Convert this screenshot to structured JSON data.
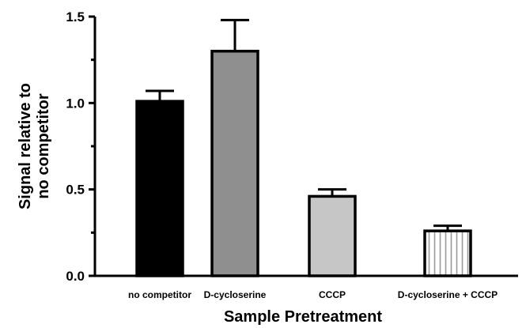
{
  "chart_data": {
    "type": "bar",
    "title": "",
    "categories": [
      "no competitor",
      "D-cycloserine",
      "CCCP",
      "D-cycloserine + CCCP"
    ],
    "values": [
      1.01,
      1.3,
      0.46,
      0.26
    ],
    "errors": [
      0.06,
      0.18,
      0.04,
      0.03
    ],
    "xlabel": "Sample Pretreatment",
    "ylabel_lines": [
      "Signal relative to",
      "no competitor"
    ],
    "ylim": [
      0,
      1.5
    ],
    "yticks": [
      0.0,
      0.5,
      1.0,
      1.5
    ],
    "ytick_labels": [
      "0.0",
      "0.5",
      "1.0",
      "1.5"
    ],
    "grid": false,
    "bar_fills": [
      "#000000",
      "#8f8f8f",
      "#c6c6c6",
      "hatched"
    ],
    "hatch_colors": [
      "#ffffff",
      "#9a9a9a"
    ]
  }
}
